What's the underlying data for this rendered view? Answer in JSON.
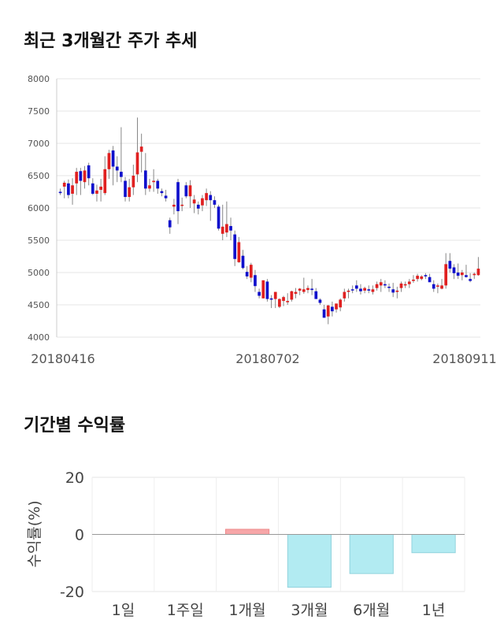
{
  "sections": {
    "price_title": "최근 3개월간 주가 추세",
    "returns_title": "기간별 수익률"
  },
  "chart_data": [
    {
      "type": "candlestick",
      "title": "최근 3개월간 주가 추세",
      "ylim": [
        4000,
        8000
      ],
      "y_ticks": [
        4000,
        4500,
        5000,
        5500,
        6000,
        6500,
        7000,
        7500,
        8000
      ],
      "x_tick_labels": [
        "20180416",
        "20180702",
        "20180911"
      ],
      "colors": {
        "up": "#e02020",
        "down": "#1010cc",
        "wick": "#888888"
      },
      "candles": [
        [
          6250,
          6300,
          6200,
          6230
        ],
        [
          6330,
          6420,
          6150,
          6390
        ],
        [
          6380,
          6440,
          6150,
          6200
        ],
        [
          6220,
          6460,
          6050,
          6350
        ],
        [
          6380,
          6620,
          6200,
          6560
        ],
        [
          6570,
          6620,
          6200,
          6420
        ],
        [
          6400,
          6650,
          6300,
          6580
        ],
        [
          6660,
          6700,
          6350,
          6460
        ],
        [
          6380,
          6460,
          6200,
          6220
        ],
        [
          6220,
          6360,
          6100,
          6270
        ],
        [
          6280,
          6450,
          6100,
          6330
        ],
        [
          6230,
          6800,
          6200,
          6600
        ],
        [
          6600,
          6900,
          6450,
          6850
        ],
        [
          6890,
          6960,
          6350,
          6640
        ],
        [
          6640,
          6800,
          6400,
          6580
        ],
        [
          6560,
          7250,
          6400,
          6480
        ],
        [
          6420,
          6480,
          6100,
          6170
        ],
        [
          6170,
          6450,
          6100,
          6320
        ],
        [
          6320,
          6670,
          6200,
          6500
        ],
        [
          6520,
          7400,
          6400,
          6860
        ],
        [
          6870,
          7150,
          6550,
          6950
        ],
        [
          6580,
          6850,
          6200,
          6300
        ],
        [
          6300,
          6450,
          6250,
          6350
        ],
        [
          6400,
          6600,
          6250,
          6420
        ],
        [
          6420,
          6450,
          6220,
          6300
        ],
        [
          6260,
          6300,
          6180,
          6230
        ],
        [
          6190,
          6280,
          6100,
          6150
        ],
        [
          5810,
          5850,
          5600,
          5700
        ],
        [
          6020,
          6140,
          5900,
          6050
        ],
        [
          6400,
          6450,
          5750,
          5950
        ],
        [
          6040,
          6160,
          5950,
          6050
        ],
        [
          6350,
          6400,
          6150,
          6180
        ],
        [
          6180,
          6430,
          6000,
          6350
        ],
        [
          6070,
          6200,
          5920,
          6130
        ],
        [
          6050,
          6100,
          5900,
          5990
        ],
        [
          6040,
          6200,
          5950,
          6150
        ],
        [
          6120,
          6300,
          6030,
          6230
        ],
        [
          6200,
          6260,
          5800,
          6120
        ],
        [
          6120,
          6180,
          6000,
          6050
        ],
        [
          6020,
          6050,
          5650,
          5680
        ],
        [
          5600,
          6050,
          5500,
          5710
        ],
        [
          5620,
          6100,
          5550,
          5750
        ],
        [
          5720,
          5850,
          5500,
          5650
        ],
        [
          5590,
          5650,
          5100,
          5210
        ],
        [
          5160,
          5550,
          5150,
          5470
        ],
        [
          5260,
          5350,
          5050,
          5070
        ],
        [
          5010,
          5100,
          4900,
          4940
        ],
        [
          4920,
          5150,
          4850,
          5120
        ],
        [
          4960,
          5040,
          4700,
          4790
        ],
        [
          4700,
          4750,
          4600,
          4640
        ],
        [
          4600,
          4880,
          4600,
          4880
        ],
        [
          4860,
          4900,
          4550,
          4590
        ],
        [
          4600,
          4650,
          4450,
          4580
        ],
        [
          4590,
          4700,
          4450,
          4700
        ],
        [
          4470,
          4600,
          4450,
          4590
        ],
        [
          4560,
          4640,
          4480,
          4620
        ],
        [
          4540,
          4680,
          4500,
          4560
        ],
        [
          4580,
          4720,
          4550,
          4710
        ],
        [
          4670,
          4760,
          4600,
          4700
        ],
        [
          4720,
          4760,
          4650,
          4750
        ],
        [
          4700,
          4920,
          4670,
          4740
        ],
        [
          4730,
          4800,
          4680,
          4760
        ],
        [
          4750,
          4900,
          4650,
          4730
        ],
        [
          4710,
          4760,
          4600,
          4590
        ],
        [
          4580,
          4600,
          4500,
          4530
        ],
        [
          4430,
          4500,
          4300,
          4300
        ],
        [
          4320,
          4500,
          4200,
          4490
        ],
        [
          4470,
          4550,
          4320,
          4400
        ],
        [
          4430,
          4480,
          4380,
          4520
        ],
        [
          4460,
          4600,
          4400,
          4580
        ],
        [
          4600,
          4750,
          4550,
          4700
        ],
        [
          4700,
          4750,
          4600,
          4720
        ],
        [
          4740,
          4800,
          4680,
          4730
        ],
        [
          4800,
          4880,
          4700,
          4750
        ],
        [
          4750,
          4820,
          4660,
          4710
        ],
        [
          4720,
          4780,
          4680,
          4760
        ],
        [
          4740,
          4800,
          4680,
          4720
        ],
        [
          4700,
          4800,
          4660,
          4740
        ],
        [
          4760,
          4860,
          4720,
          4820
        ],
        [
          4800,
          4900,
          4700,
          4850
        ],
        [
          4820,
          4880,
          4760,
          4800
        ],
        [
          4780,
          4830,
          4700,
          4770
        ],
        [
          4740,
          4840,
          4620,
          4690
        ],
        [
          4700,
          4780,
          4600,
          4720
        ],
        [
          4760,
          4860,
          4700,
          4830
        ],
        [
          4800,
          4860,
          4760,
          4820
        ],
        [
          4820,
          4900,
          4760,
          4860
        ],
        [
          4870,
          4960,
          4840,
          4890
        ],
        [
          4900,
          4980,
          4860,
          4950
        ],
        [
          4900,
          4960,
          4880,
          4940
        ],
        [
          4960,
          4990,
          4900,
          4940
        ],
        [
          4930,
          4980,
          4860,
          4850
        ],
        [
          4820,
          4880,
          4700,
          4750
        ],
        [
          4780,
          4830,
          4680,
          4800
        ],
        [
          4750,
          4900,
          4740,
          4800
        ],
        [
          4800,
          5300,
          4750,
          5130
        ],
        [
          5180,
          5300,
          5000,
          5060
        ],
        [
          5080,
          5130,
          4900,
          4990
        ],
        [
          5000,
          5140,
          4900,
          4950
        ],
        [
          4960,
          5040,
          4880,
          5000
        ],
        [
          4960,
          5120,
          4920,
          4930
        ],
        [
          4900,
          4990,
          4850,
          4870
        ],
        [
          4960,
          5000,
          4900,
          4980
        ],
        [
          4960,
          5240,
          4950,
          5060
        ]
      ]
    },
    {
      "type": "bar",
      "categories": [
        "1일",
        "1주일",
        "1개월",
        "3개월",
        "6개월",
        "1년"
      ],
      "values": [
        0,
        0,
        1.8,
        -18.5,
        -13.7,
        -6.4
      ],
      "ylabel": "수익률(%)",
      "ylim": [
        -20,
        20
      ],
      "y_ticks": [
        20,
        0,
        -20
      ],
      "colors": {
        "positive": "#f7a6a8",
        "negative": "#b2ebf2",
        "negative_edge": "#92d3dd",
        "positive_edge": "#ee8a8c"
      }
    }
  ]
}
